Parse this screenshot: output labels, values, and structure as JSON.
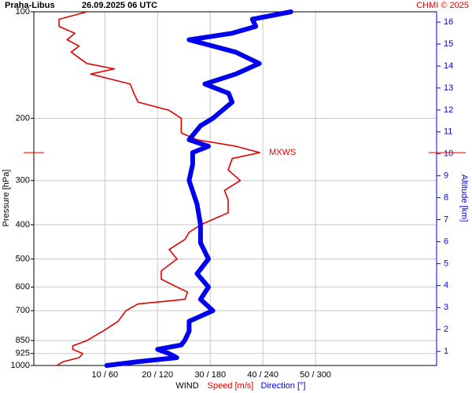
{
  "chart_data": {
    "type": "wind-profile",
    "station": "Praha-Libus",
    "time": "26.09.2025 06 UTC",
    "credit": "CHMI © 2025",
    "ylabel": "Pressure [hPa]",
    "y2label": "Altitude [km]",
    "xlabel": "WIND",
    "x_speed_label": "Speed [m/s]",
    "x_direction_label": "Direction [°]",
    "ylog": true,
    "grid": true,
    "ylim": [
      1000,
      100
    ],
    "yticks": [
      100,
      200,
      300,
      400,
      500,
      600,
      700,
      850,
      925,
      1000
    ],
    "y2lim": [
      0.36,
      16.47
    ],
    "y2ticks": [
      1,
      2,
      3,
      4,
      5,
      6,
      7,
      8,
      9,
      10,
      11,
      12,
      13,
      14,
      15,
      16
    ],
    "y2color": "#0000ee",
    "xlim": [
      -3.5,
      73
    ],
    "x2lim": [
      -21,
      438
    ],
    "xticks": [
      {
        "value": 10,
        "label": "10 / 60"
      },
      {
        "value": 20,
        "label": "20 / 120"
      },
      {
        "value": 30,
        "label": "30 / 180"
      },
      {
        "value": 40,
        "label": "40 / 240"
      },
      {
        "value": 50,
        "label": "50 / 300"
      }
    ],
    "series": [
      {
        "name": "Speed",
        "axis": "x",
        "color": "#e00000",
        "pressure": [
          1000,
          975,
          950,
          925,
          900,
          880,
          850,
          800,
          750,
          700,
          670,
          650,
          620,
          600,
          570,
          540,
          500,
          470,
          440,
          420,
          400,
          370,
          340,
          320,
          300,
          280,
          260,
          250,
          240,
          230,
          220,
          200,
          190,
          180,
          170,
          160,
          150,
          145,
          140,
          135,
          130,
          125,
          120,
          115,
          110,
          105,
          100
        ],
        "values": [
          0.9,
          2.1,
          5.1,
          5.8,
          3.9,
          3.9,
          6.6,
          9.6,
          12.5,
          14,
          16.3,
          25.2,
          25.7,
          23.7,
          20.7,
          20.7,
          23.7,
          22.2,
          25.2,
          26,
          28.2,
          33.4,
          33.4,
          32.7,
          35.7,
          33.4,
          34.2,
          39.4,
          34.9,
          27.5,
          24.5,
          24.5,
          22.2,
          16.3,
          15.5,
          14.8,
          7.3,
          11.8,
          6.6,
          5.1,
          3.6,
          5.1,
          2.8,
          4.3,
          1.3,
          1.3,
          6.6
        ]
      },
      {
        "name": "Direction",
        "axis": "x2",
        "color": "#0000ee",
        "pressure": [
          1000,
          975,
          950,
          925,
          900,
          875,
          850,
          800,
          750,
          700,
          650,
          600,
          550,
          500,
          450,
          400,
          350,
          300,
          270,
          250,
          240,
          230,
          210,
          200,
          180,
          170,
          160,
          150,
          140,
          130,
          120,
          115,
          110,
          105,
          100
        ],
        "values": [
          62,
          98,
          142,
          133,
          120,
          147,
          151,
          156,
          156,
          183,
          169,
          178,
          165,
          178,
          169,
          169,
          165,
          156,
          160,
          160,
          178,
          156,
          169,
          183,
          205,
          201,
          174,
          209,
          236,
          209,
          156,
          205,
          232,
          228,
          272
        ]
      }
    ],
    "annotation": {
      "text": "MXWS",
      "pressure": 250,
      "color": "#e00000"
    }
  }
}
